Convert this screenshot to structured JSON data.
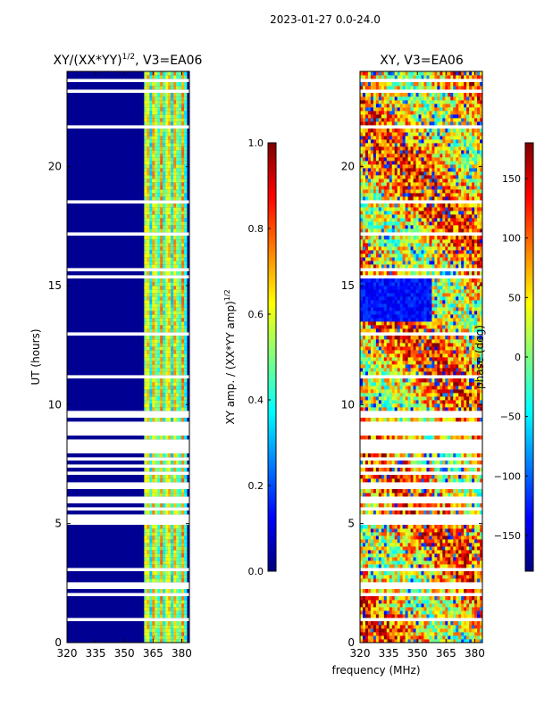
{
  "suptitle": "2023-01-27 0.0-24.0",
  "shared_xlabel": "frequency (MHz)",
  "colormap": [
    "#00007f",
    "#0000ff",
    "#007fff",
    "#00ffff",
    "#7fff7f",
    "#ffff00",
    "#ff7f00",
    "#ff0000",
    "#7f0000"
  ],
  "chart_data": [
    {
      "type": "heatmap",
      "title_prefix": "XY/(XX*YY)",
      "title_exp": "1/2",
      "title_suffix": ", V3=EA06",
      "xlabel": "frequency (MHz)",
      "ylabel": "UT (hours)",
      "xlim": [
        320,
        384
      ],
      "ylim": [
        0,
        24
      ],
      "xticks": [
        "320",
        "335",
        "350",
        "365",
        "380"
      ],
      "yticks": [
        "0",
        "5",
        "10",
        "15",
        "20"
      ],
      "colorbar": {
        "label_prefix": "XY amp. / (XX*YY amp)",
        "label_exp": "1/2",
        "range": [
          0.0,
          1.0
        ],
        "ticks": [
          "0.0",
          "0.2",
          "0.4",
          "0.6",
          "0.8",
          "1.0"
        ]
      },
      "description_values": {
        "background_amp": 0.02,
        "band_amp_range": [
          0.3,
          0.8
        ],
        "band_freq_range": [
          361,
          382
        ]
      }
    },
    {
      "type": "heatmap",
      "title": "XY, V3=EA06",
      "xlabel": "frequency (MHz)",
      "ylim": [
        0,
        24
      ],
      "xlim": [
        320,
        384
      ],
      "xticks": [
        "320",
        "335",
        "350",
        "365",
        "380"
      ],
      "yticks": [
        "0",
        "5",
        "10",
        "15",
        "20"
      ],
      "colorbar": {
        "label": "phase (deg)",
        "range": [
          -180,
          180
        ],
        "ticks": [
          "−150",
          "−100",
          "−50",
          "0",
          "50",
          "100",
          "150"
        ]
      },
      "description_values": {
        "dominant_phase_deg": [
          20,
          120
        ],
        "blue_block_hours": [
          13.5,
          15.5
        ],
        "blue_block_phase_deg": -130
      }
    }
  ]
}
